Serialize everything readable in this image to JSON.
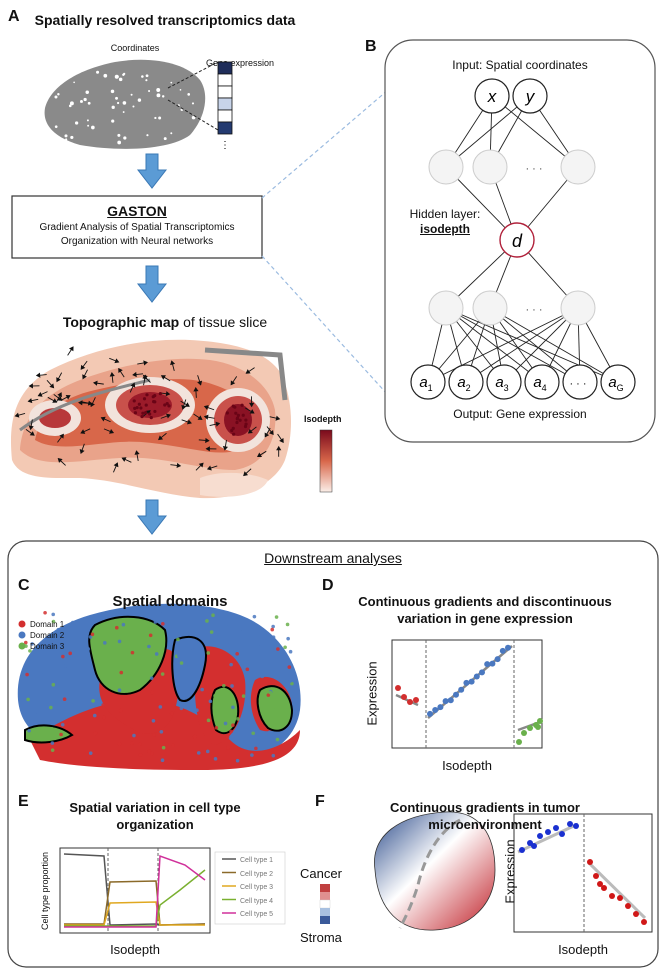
{
  "panelA": {
    "letter": "A",
    "title": "Spatially resolved transcriptomics data",
    "coordinates_label": "Coordinates",
    "gene_expression_label": "Gene expression",
    "gaston_title": "GASTON",
    "gaston_line1": "Gradient Analysis of Spatial Transcriptomics",
    "gaston_line2": "Organization with Neural networks",
    "map_title_bold": "Topographic map",
    "map_title_rest": " of tissue slice",
    "isodepth_label": "Isodepth"
  },
  "panelB": {
    "letter": "B",
    "input_label": "Input: Spatial coordinates",
    "input_nodes": [
      "x",
      "y"
    ],
    "hidden_label": "Hidden layer:",
    "hidden_bold": "isodepth",
    "hidden_node": "d",
    "ellipsis": "· · ·",
    "output_nodes": [
      "a",
      "a",
      "a",
      "a",
      "· · ·",
      "a"
    ],
    "output_subs": [
      "1",
      "2",
      "3",
      "4",
      "",
      "G"
    ],
    "output_label": "Output: Gene expression"
  },
  "downstream": {
    "title": "Downstream analyses",
    "colors": {
      "domain1": "#d32f2f",
      "domain2": "#4a78c0",
      "domain3": "#6ab04c",
      "frame": "#555555"
    }
  },
  "panelC": {
    "letter": "C",
    "title": "Spatial domains",
    "legend": [
      "Domain 1",
      "Domain 2",
      "Domain 3"
    ]
  },
  "panelD": {
    "letter": "D",
    "title_line1": "Continuous gradients and discontinuous",
    "title_line2": "variation in gene expression",
    "ylabel": "Expression",
    "xlabel": "Isodepth"
  },
  "panelE": {
    "letter": "E",
    "title_line1": "Spatial variation in cell type",
    "title_line2": "organization",
    "ylabel": "Cell type proportion",
    "xlabel": "Isodepth",
    "legend": [
      "Cell type 1",
      "Cell type 2",
      "Cell type 3",
      "Cell type 4",
      "Cell type 5"
    ],
    "legend_colors": [
      "#555555",
      "#8b6a2a",
      "#e0a820",
      "#7ab030",
      "#d0309a"
    ]
  },
  "panelF": {
    "letter": "F",
    "title_line1": "Continuous gradients in tumor",
    "title_line2": "microenvironment",
    "cancer_label": "Cancer",
    "stroma_label": "Stroma",
    "ylabel": "Expression",
    "xlabel": "Isodepth"
  }
}
